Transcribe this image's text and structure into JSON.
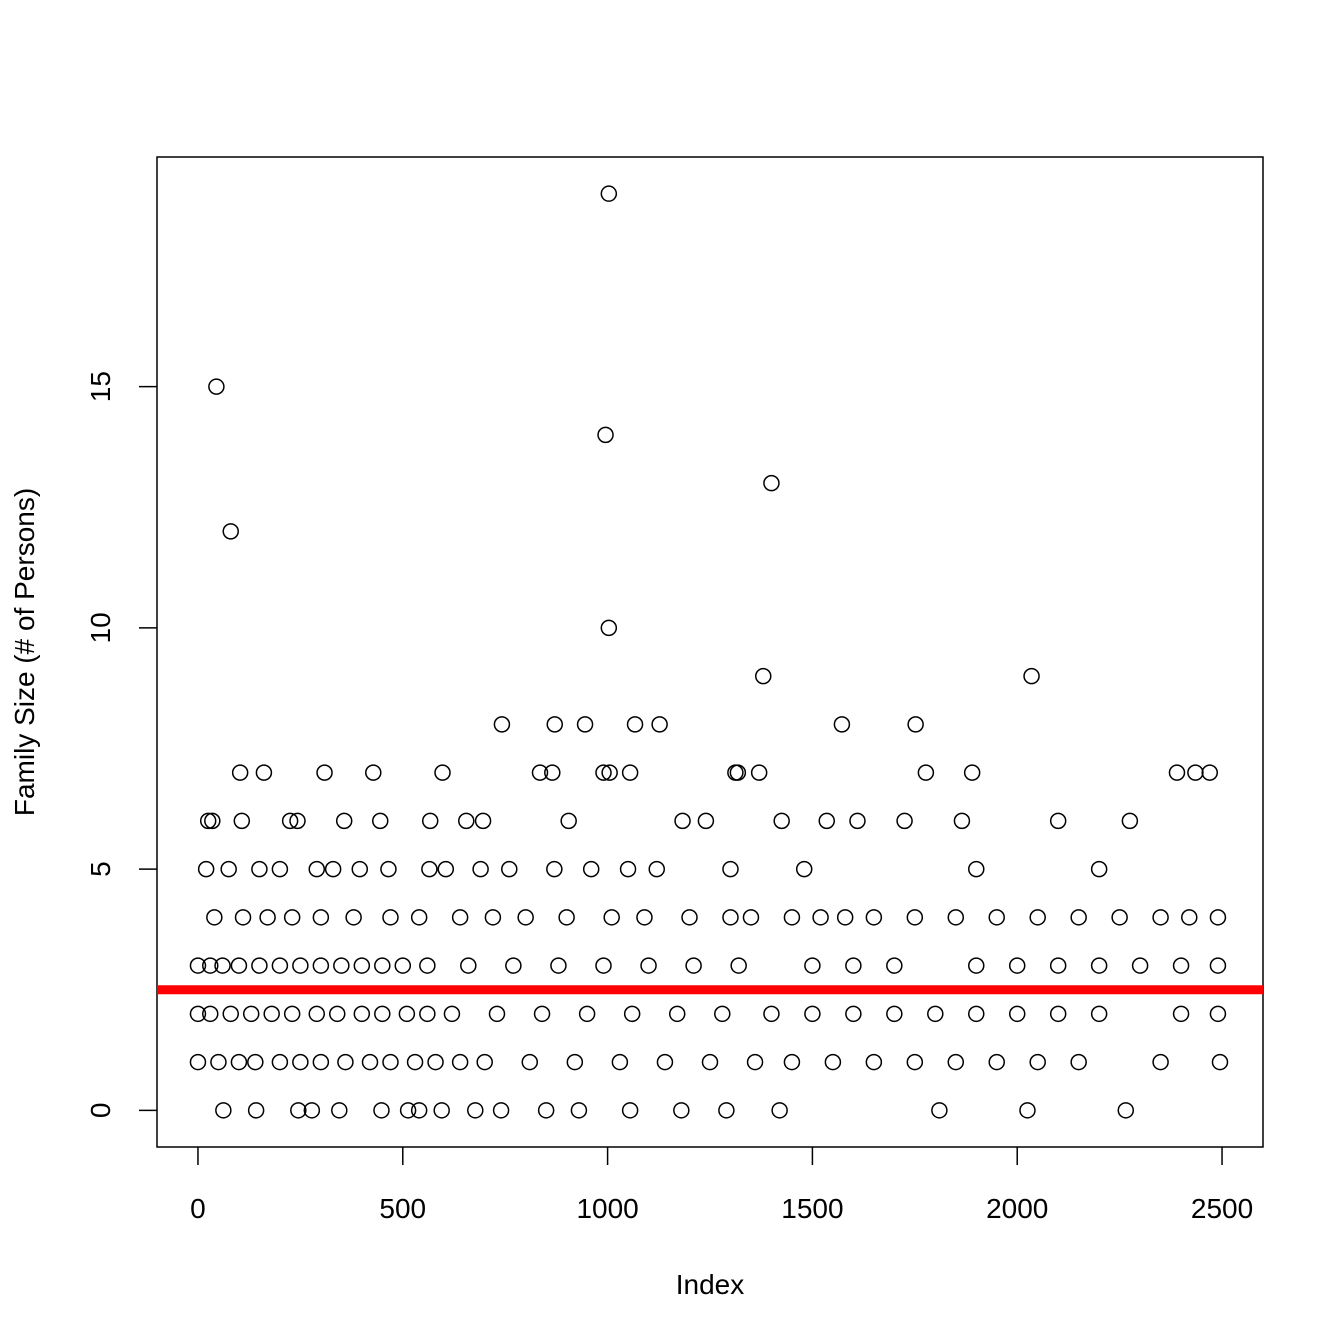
{
  "chart_data": {
    "type": "scatter",
    "xlabel": "Index",
    "ylabel": "Family Size (# of Persons)",
    "xlim": [
      -100,
      2600
    ],
    "ylim": [
      -0.76,
      19.76
    ],
    "xticks": [
      0,
      500,
      1000,
      1500,
      2000,
      2500
    ],
    "yticks": [
      0,
      5,
      10,
      15
    ],
    "color": "#000000",
    "hline": {
      "value": 2.5,
      "color": "#ff0000"
    },
    "x": [
      45,
      80,
      995,
      1003,
      1003,
      1400,
      1380,
      2035,
      742,
      871,
      945,
      1067,
      1127,
      1572,
      1752,
      103,
      161,
      309,
      428,
      597,
      835,
      865,
      990,
      1005,
      1055,
      1312,
      1318,
      1370,
      1777,
      1890,
      2390,
      2435,
      2470,
      25,
      35,
      107,
      225,
      243,
      357,
      445,
      567,
      655,
      696,
      905,
      1183,
      1240,
      1425,
      1535,
      1610,
      1725,
      1865,
      2100,
      2275,
      20,
      75,
      150,
      200,
      290,
      330,
      395,
      465,
      565,
      605,
      690,
      760,
      870,
      960,
      1050,
      1120,
      1300,
      1480,
      1900,
      2200,
      40,
      110,
      170,
      230,
      300,
      380,
      470,
      540,
      640,
      720,
      800,
      900,
      1010,
      1090,
      1200,
      1450,
      1650,
      1850,
      2150,
      2490,
      1300,
      1350,
      1520,
      1580,
      1750,
      1950,
      2050,
      2250,
      2350,
      2420,
      0,
      60,
      150,
      250,
      350,
      450,
      560,
      660,
      770,
      880,
      990,
      1100,
      1210,
      1320,
      1500,
      1700,
      1900,
      2100,
      2300,
      2490,
      30,
      100,
      200,
      300,
      400,
      500,
      1600,
      2000,
      2200,
      2400,
      0,
      80,
      180,
      290,
      400,
      510,
      620,
      730,
      840,
      950,
      1060,
      1170,
      1280,
      1400,
      1600,
      1800,
      2000,
      2200,
      2400,
      2490,
      30,
      130,
      230,
      340,
      450,
      560,
      1500,
      1700,
      1900,
      2100,
      0,
      50,
      140,
      250,
      360,
      470,
      580,
      700,
      810,
      920,
      1030,
      1140,
      1250,
      1360,
      1550,
      1750,
      1950,
      2150,
      2350,
      2495,
      100,
      200,
      300,
      420,
      530,
      640,
      1450,
      1650,
      1850,
      2050,
      62,
      142,
      245,
      278,
      345,
      448,
      513,
      540,
      595,
      677,
      740,
      850,
      930,
      1055,
      1180,
      1290,
      1420,
      1810,
      2025,
      2265
    ],
    "values": [
      15,
      12,
      14,
      19,
      10,
      13,
      9,
      9,
      8,
      8,
      8,
      8,
      8,
      8,
      8,
      7,
      7,
      7,
      7,
      7,
      7,
      7,
      7,
      7,
      7,
      7,
      7,
      7,
      7,
      7,
      7,
      7,
      7,
      6,
      6,
      6,
      6,
      6,
      6,
      6,
      6,
      6,
      6,
      6,
      6,
      6,
      6,
      6,
      6,
      6,
      6,
      6,
      6,
      5,
      5,
      5,
      5,
      5,
      5,
      5,
      5,
      5,
      5,
      5,
      5,
      5,
      5,
      5,
      5,
      5,
      5,
      5,
      5,
      4,
      4,
      4,
      4,
      4,
      4,
      4,
      4,
      4,
      4,
      4,
      4,
      4,
      4,
      4,
      4,
      4,
      4,
      4,
      4,
      4,
      4,
      4,
      4,
      4,
      4,
      4,
      4,
      4,
      4,
      3,
      3,
      3,
      3,
      3,
      3,
      3,
      3,
      3,
      3,
      3,
      3,
      3,
      3,
      3,
      3,
      3,
      3,
      3,
      3,
      3,
      3,
      3,
      3,
      3,
      3,
      3,
      3,
      3,
      3,
      2,
      2,
      2,
      2,
      2,
      2,
      2,
      2,
      2,
      2,
      2,
      2,
      2,
      2,
      2,
      2,
      2,
      2,
      2,
      2,
      2,
      2,
      2,
      2,
      2,
      2,
      2,
      2,
      2,
      2,
      1,
      1,
      1,
      1,
      1,
      1,
      1,
      1,
      1,
      1,
      1,
      1,
      1,
      1,
      1,
      1,
      1,
      1,
      1,
      1,
      1,
      1,
      1,
      1,
      1,
      1,
      1,
      1,
      1,
      1,
      0,
      0,
      0,
      0,
      0,
      0,
      0,
      0,
      0,
      0,
      0,
      0,
      0,
      0,
      0,
      0,
      0,
      0,
      0,
      0
    ]
  }
}
